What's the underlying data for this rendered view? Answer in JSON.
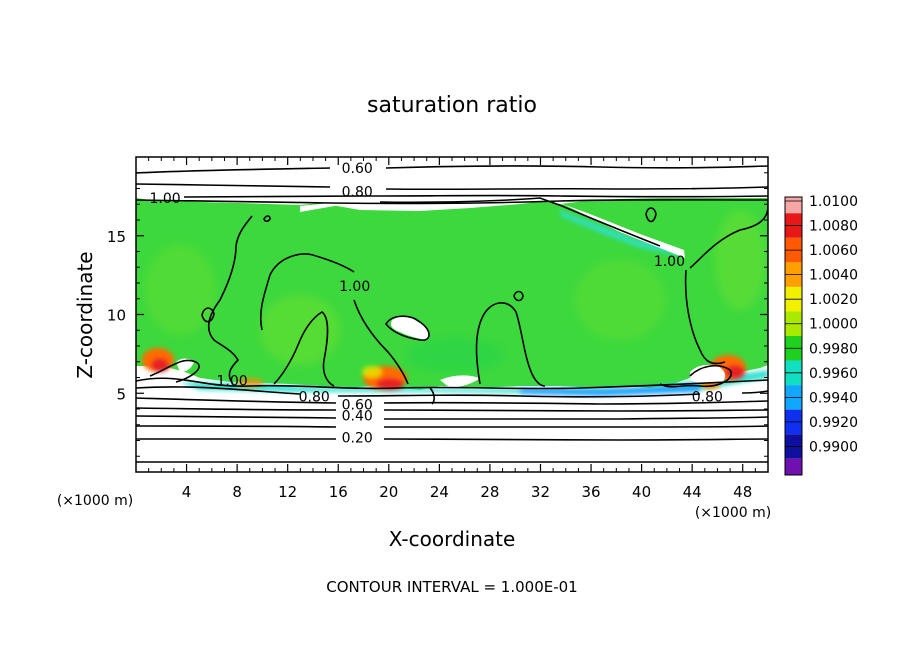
{
  "chart_data": {
    "type": "heatmap",
    "title": "saturation ratio",
    "xlabel": "X-coordinate",
    "ylabel": "Z-coordinate",
    "x_unit_left": "(×1000 m)",
    "x_unit_right": "(×1000 m)",
    "footer": "CONTOUR INTERVAL = 1.000E-01",
    "xlim": [
      0,
      50
    ],
    "ylim": [
      0,
      20
    ],
    "x_ticks": [
      "4",
      "8",
      "12",
      "16",
      "20",
      "24",
      "28",
      "32",
      "36",
      "40",
      "44",
      "48"
    ],
    "x_tick_values": [
      4,
      8,
      12,
      16,
      20,
      24,
      28,
      32,
      36,
      40,
      44,
      48
    ],
    "y_ticks": [
      "5",
      "10",
      "15"
    ],
    "y_tick_values": [
      5,
      10,
      15
    ],
    "contour_labels": [
      {
        "text": "0.60",
        "x": 17.5,
        "y": 19.3
      },
      {
        "text": "0.80",
        "x": 17.5,
        "y": 17.8
      },
      {
        "text": "1.00",
        "x": 2.3,
        "y": 17.4
      },
      {
        "text": "1.00",
        "x": 17.3,
        "y": 11.8
      },
      {
        "text": "1.00",
        "x": 42.2,
        "y": 13.4
      },
      {
        "text": "1.00",
        "x": 7.6,
        "y": 5.8
      },
      {
        "text": "0.80",
        "x": 14.1,
        "y": 4.8
      },
      {
        "text": "0.60",
        "x": 17.5,
        "y": 4.3
      },
      {
        "text": "0.40",
        "x": 17.5,
        "y": 3.6
      },
      {
        "text": "0.20",
        "x": 17.5,
        "y": 2.2
      },
      {
        "text": "0.80",
        "x": 45.2,
        "y": 4.8
      }
    ],
    "colorbar": {
      "labels": [
        "1.0100",
        "1.0080",
        "1.0060",
        "1.0040",
        "1.0020",
        "1.0000",
        "0.9980",
        "0.9960",
        "0.9940",
        "0.9920",
        "0.9900"
      ],
      "values": [
        1.01,
        1.008,
        1.006,
        1.004,
        1.002,
        1.0,
        0.998,
        0.996,
        0.994,
        0.992,
        0.99
      ],
      "colors": [
        "#f7a6a6",
        "#e81818",
        "#ff5a00",
        "#ffa000",
        "#f0f000",
        "#aaea00",
        "#20d020",
        "#10e0c0",
        "#10a8ff",
        "#1030f0",
        "#1010a0",
        "#7010b0"
      ]
    },
    "field_colors": {
      "background_green": "#3dd83d",
      "unsaturated_white": "#ffffff",
      "cyan_edge": "#30e0d0",
      "blue_edge": "#1aa0ff",
      "orange_hotspot": "#ff6a00",
      "red_hotspot": "#e82020",
      "yellow_hotspot": "#e8e800"
    }
  }
}
